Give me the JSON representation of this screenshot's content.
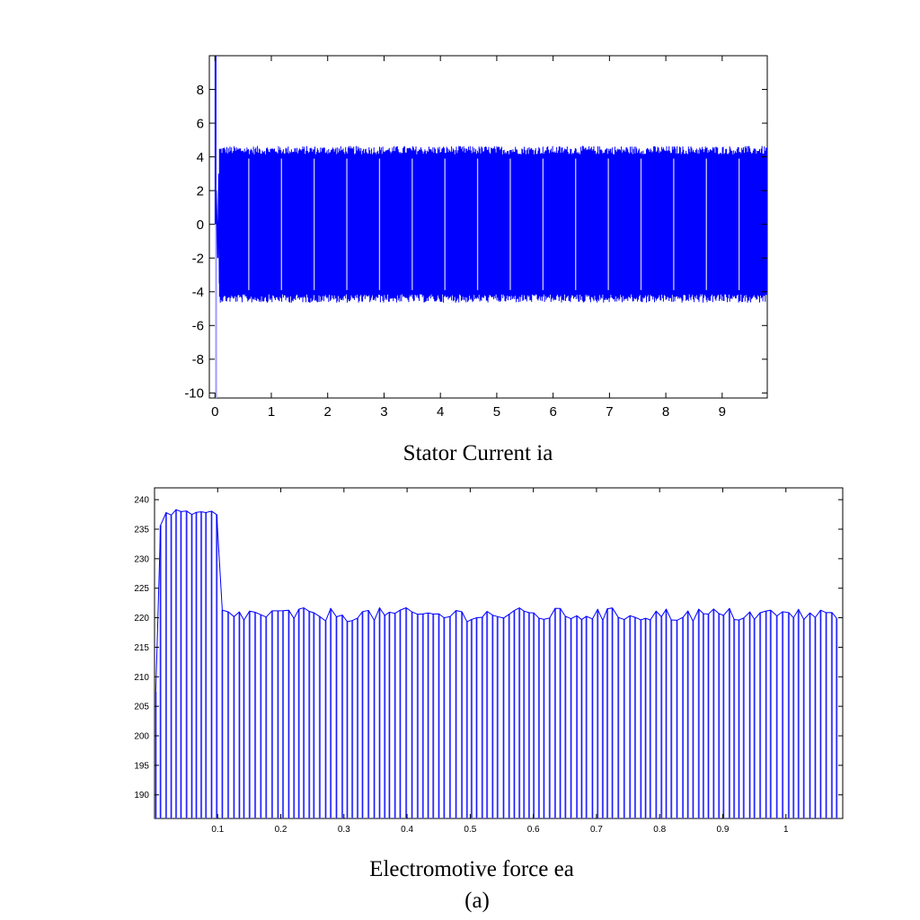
{
  "figure_label": "(a)",
  "chart_data": [
    {
      "type": "line",
      "title": "Stator Current ia",
      "xlabel": "",
      "ylabel": "",
      "xlim": [
        -0.1,
        9.8
      ],
      "ylim": [
        -10.3,
        10
      ],
      "xticks": [
        0,
        1,
        2,
        3,
        4,
        5,
        6,
        7,
        8,
        9
      ],
      "yticks": [
        -10,
        -8,
        -6,
        -4,
        -2,
        0,
        2,
        4,
        6,
        8
      ],
      "grid": false,
      "series": [
        {
          "color": "#0000ff",
          "x_range": [
            0,
            9.8
          ],
          "envelope_upper": 4.3,
          "envelope_lower": -4.3,
          "noise_amplitude": 0.25,
          "initial_spike_max": 10,
          "initial_spike_min": -10.3
        }
      ]
    },
    {
      "type": "line",
      "title": "Electromotive force ea",
      "xlabel": "",
      "ylabel": "",
      "xlim": [
        0,
        1.09
      ],
      "ylim": [
        186,
        242
      ],
      "xticks": [
        0.1,
        0.2,
        0.3,
        0.4,
        0.5,
        0.6,
        0.7,
        0.8,
        0.9,
        1
      ],
      "yticks": [
        190,
        195,
        200,
        205,
        210,
        215,
        220,
        225,
        230,
        235,
        240
      ],
      "grid": false,
      "series": [
        {
          "color": "#0000ff",
          "start_level": 200,
          "rise_end_x": 0.01,
          "high_level": 237.5,
          "high_end_x": 0.1,
          "steady_level": 220.5,
          "ripple": 1.2,
          "pulse_period": 0.0085
        }
      ]
    }
  ]
}
